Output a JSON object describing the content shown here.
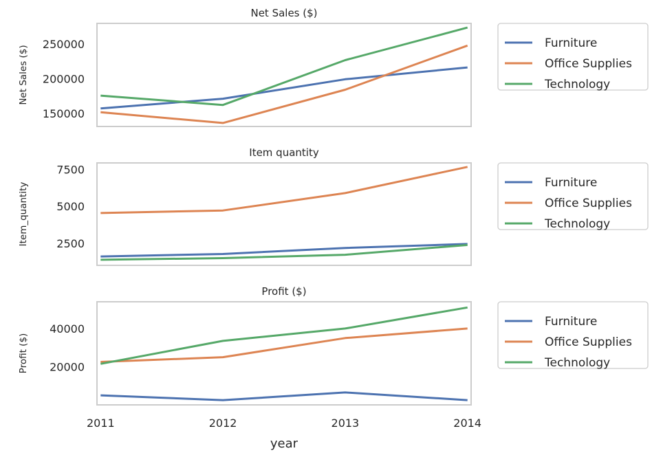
{
  "figure": {
    "xlabel": "year",
    "x_ticks": [
      "2011",
      "2012",
      "2013",
      "2014"
    ]
  },
  "colors": {
    "Furniture": "#4c72b0",
    "Office Supplies": "#dd8452",
    "Technology": "#55a868",
    "axes_edge": "#cccccc",
    "legend_edge": "#cccccc"
  },
  "chart_data": [
    {
      "type": "line",
      "title": "Net Sales ($)",
      "ylabel": "Net Sales ($)",
      "x": [
        2011,
        2012,
        2013,
        2014
      ],
      "xlim": [
        2010.97,
        2014.03
      ],
      "ylim": [
        131000,
        279500
      ],
      "yticks": [
        150000,
        200000,
        250000
      ],
      "ytick_labels": [
        "150000",
        "200000",
        "250000"
      ],
      "grid": false,
      "legend_position": "outside-right",
      "series": [
        {
          "name": "Furniture",
          "values": [
            157000,
            171000,
            199000,
            216000
          ]
        },
        {
          "name": "Office Supplies",
          "values": [
            151500,
            136000,
            184000,
            247500
          ]
        },
        {
          "name": "Technology",
          "values": [
            175500,
            162000,
            226500,
            273500
          ]
        }
      ]
    },
    {
      "type": "line",
      "title": "Item quantity",
      "ylabel": "Item_quantity",
      "x": [
        2011,
        2012,
        2013,
        2014
      ],
      "xlim": [
        2010.97,
        2014.03
      ],
      "ylim": [
        1000,
        7950
      ],
      "yticks": [
        2500,
        5000,
        7500
      ],
      "ytick_labels": [
        "2500",
        "5000",
        "7500"
      ],
      "grid": false,
      "legend_position": "outside-right",
      "series": [
        {
          "name": "Furniture",
          "values": [
            1600,
            1770,
            2180,
            2450
          ]
        },
        {
          "name": "Office Supplies",
          "values": [
            4550,
            4720,
            5900,
            7680
          ]
        },
        {
          "name": "Technology",
          "values": [
            1380,
            1490,
            1720,
            2380
          ]
        }
      ]
    },
    {
      "type": "line",
      "title": "Profit ($)",
      "ylabel": "Profit ($)",
      "x": [
        2011,
        2012,
        2013,
        2014
      ],
      "xlim": [
        2010.97,
        2014.03
      ],
      "ylim": [
        0,
        54000
      ],
      "yticks": [
        20000,
        40000
      ],
      "ytick_labels": [
        "20000",
        "40000"
      ],
      "grid": false,
      "legend_position": "outside-right",
      "series": [
        {
          "name": "Furniture",
          "values": [
            5000,
            2500,
            6500,
            2500
          ]
        },
        {
          "name": "Office Supplies",
          "values": [
            22500,
            25000,
            35000,
            40000
          ]
        },
        {
          "name": "Technology",
          "values": [
            21500,
            33500,
            40000,
            51000
          ]
        }
      ]
    }
  ]
}
